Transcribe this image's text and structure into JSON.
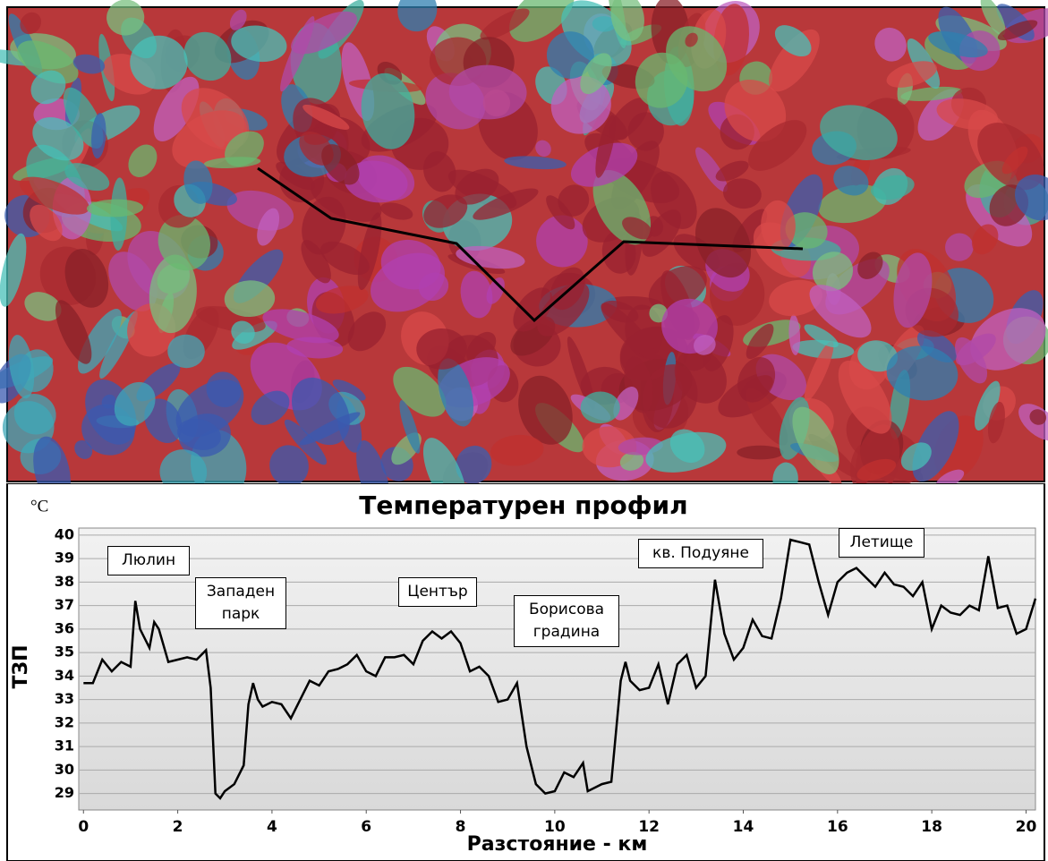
{
  "chart_data": {
    "type": "line",
    "title": "Температурен профил",
    "unit": "°C",
    "x_label": "Разстояние - км",
    "y_label": "ТЗП",
    "annotations": [
      "Люлин",
      "Западен парк",
      "Център",
      "Борисова градина",
      "кв. Подуяне",
      "Летище"
    ],
    "xlim": [
      -0.1,
      20.2
    ],
    "ylim": [
      28.3,
      40.3
    ],
    "xticks": [
      0,
      2,
      4,
      6,
      8,
      10,
      12,
      14,
      16,
      18,
      20
    ],
    "yticks": [
      29,
      30,
      31,
      32,
      33,
      34,
      35,
      36,
      37,
      38,
      39,
      40
    ],
    "grid": true,
    "x": [
      0,
      0.2,
      0.4,
      0.6,
      0.8,
      1.0,
      1.1,
      1.2,
      1.4,
      1.5,
      1.6,
      1.8,
      2.0,
      2.2,
      2.4,
      2.6,
      2.7,
      2.8,
      2.9,
      3.0,
      3.2,
      3.4,
      3.5,
      3.6,
      3.7,
      3.8,
      4.0,
      4.2,
      4.4,
      4.6,
      4.8,
      5.0,
      5.2,
      5.4,
      5.6,
      5.8,
      6.0,
      6.2,
      6.4,
      6.6,
      6.8,
      7.0,
      7.2,
      7.4,
      7.6,
      7.8,
      8.0,
      8.2,
      8.4,
      8.6,
      8.8,
      9.0,
      9.2,
      9.4,
      9.6,
      9.8,
      10.0,
      10.2,
      10.4,
      10.6,
      10.7,
      10.8,
      11.0,
      11.2,
      11.4,
      11.5,
      11.6,
      11.8,
      12.0,
      12.2,
      12.4,
      12.6,
      12.8,
      13.0,
      13.2,
      13.4,
      13.6,
      13.8,
      14.0,
      14.2,
      14.4,
      14.6,
      14.8,
      15.0,
      15.2,
      15.4,
      15.6,
      15.8,
      16.0,
      16.2,
      16.4,
      16.6,
      16.8,
      17.0,
      17.2,
      17.4,
      17.6,
      17.8,
      18.0,
      18.2,
      18.4,
      18.6,
      18.8,
      19.0,
      19.2,
      19.4,
      19.6,
      19.8,
      20.0,
      20.2
    ],
    "series": [
      {
        "color": "#000000",
        "values": [
          33.7,
          33.7,
          34.7,
          34.2,
          34.6,
          34.4,
          37.2,
          36.0,
          35.2,
          36.3,
          36.0,
          34.6,
          34.7,
          34.8,
          34.7,
          35.1,
          33.5,
          29.0,
          28.8,
          29.1,
          29.4,
          30.2,
          32.8,
          33.7,
          33.0,
          32.7,
          32.9,
          32.8,
          32.2,
          33.0,
          33.8,
          33.6,
          34.2,
          34.3,
          34.5,
          34.9,
          34.2,
          34.0,
          34.8,
          34.8,
          34.9,
          34.5,
          35.5,
          35.9,
          35.6,
          35.9,
          35.4,
          34.2,
          34.4,
          34.0,
          32.9,
          33.0,
          33.7,
          31.0,
          29.4,
          29.0,
          29.1,
          29.9,
          29.7,
          30.3,
          29.1,
          29.2,
          29.4,
          29.5,
          33.8,
          34.6,
          33.8,
          33.4,
          33.5,
          34.5,
          32.8,
          34.5,
          34.9,
          33.5,
          34.0,
          38.1,
          35.8,
          34.7,
          35.2,
          36.4,
          35.7,
          35.6,
          37.3,
          39.8,
          39.7,
          39.6,
          38.0,
          36.6,
          38.0,
          38.4,
          38.6,
          38.2,
          37.8,
          38.4,
          37.9,
          37.8,
          37.4,
          38.0,
          36.0,
          37.0,
          36.7,
          36.6,
          37.0,
          36.8,
          39.1,
          36.9,
          37.0,
          35.8,
          36.0,
          37.3
        ]
      }
    ]
  }
}
